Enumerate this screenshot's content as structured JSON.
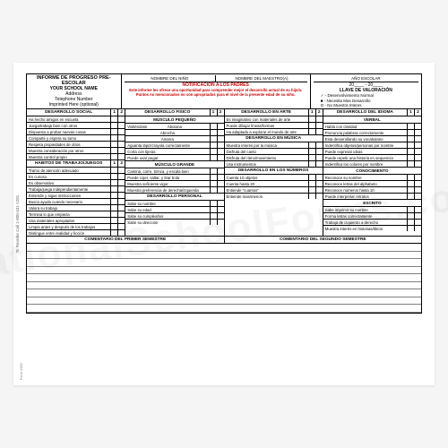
{
  "watermark": "NationalSchoolForms.com",
  "side_text": "To Reorder Call 1-800-431-1281",
  "corner": "Form #582",
  "header": {
    "title": "INFORME DE PROGRESO PRE-ESCOLAR",
    "school": "YOUR SCHOOL NAME",
    "address": "Address",
    "phone": "Telephone Number",
    "imprint": "Imprinted Here (optional)",
    "field_nino": "NOMBRE DEL NIÑO",
    "field_maestro": "NOMBRE DEL MAESTRO(A)",
    "field_ano": "AÑO ESCOLAR",
    "year_text": "20____ - 20____",
    "notif_title": "NOTIFICACIÓN A LOS PADRES",
    "notif_text": "Este informe les ofrece una oportunidad para comprender mejor el desarrollo actual de su hijo/a. Puntos no mencionados no son apropriados para el nivel de la presente edad de su niño.",
    "llave_title": "LLAVE DE VALORACIÓN",
    "llave1": "✓  -  Desenvolvimiento Normal",
    "llave2": "■  -  Necesita Mas Desarrollo",
    "llave3": "O  -  No Muestra Interes"
  },
  "col1": {
    "s1": "DESARROLLO  SOCIAL",
    "i1": "Ha hecho amigos en escuela",
    "i2": "Juega/trabaja bien con otros",
    "i3": "Dispuesto a probar nuevas cosas",
    "i4": "Comparte y espera su turno",
    "i5": "Respeta propiedades de otros",
    "i6": "Muestra consideración por otros",
    "i7": "Muestra control propio",
    "s2": "HABITOS DE TRABAJO/JUEGOS",
    "j1": "Tramo de atención adecuado",
    "j2": "Es curioso",
    "j3": "Es observativo",
    "j4": "Trabaja/juega independientamente",
    "j5": "Entiende y sigue instrucciones",
    "j6": "Busca ayuda cuando necesario",
    "j7": "Valora su trabajo",
    "j8": "Termina lo que empieza",
    "j9": "Usa materiales apropiados",
    "j10": "Limpia antes y después de los trabajos",
    "j11": "Distingue entre realidad y ficción"
  },
  "col2": {
    "s1": "DESARROLLO FISICO",
    "sub1": "MÚSCULO PEQUEÑO",
    "a1l": "Vistiéndose",
    "a1r": "Abotona",
    "a2": "Abrocha",
    "a3": "Amarra",
    "a4": "Aguanta lápiz/crayola correctamente",
    "a5": "Corta con tijeras",
    "a6": "Puede usar pegar",
    "sub2": "MÚSCULO GRANDE",
    "b1": "Camina, corre, brinca, y escala bien",
    "b2": "Puede cojer, saltar, y tirar bola",
    "b3": "Muestra suficiente vigor",
    "b4": "Muestra preferencia de derecha/izquierda",
    "s2": "DESARROLLO PERSONAL",
    "c1": "Sabe su nombre",
    "c2": "Sabe su edad",
    "c3": "Sabe su cumpleaños",
    "c4": "Sabe su dirección"
  },
  "col3": {
    "s1": "DESARROLLO EN ARTE",
    "a1": "Es imaginativo con materiales de arte",
    "a2": "Puede dibujar líneas/formas",
    "a3": "Ha adaptado a explorar el mundo de arte",
    "s2": "DESARROLLO EN MÚSICA",
    "b1": "Muestra interés por la música",
    "b2": "Disfruta del canto",
    "b3": "Disfruta del ritmo/movimiento",
    "b4": "Usa instrumentos",
    "s3": "DESARROLLO EN LOS NÚMEROS",
    "c1": "Cuenta 10 objetos",
    "c2": "Cuenta hasta 20",
    "c3": "Entiende \"cuantos\"",
    "c4": "Entiende mas/menos"
  },
  "col4": {
    "s1": "DESARROLLO DEL IDIOMA",
    "sub1": "VERBAL",
    "a1": "Habla con claridad",
    "a2": "Pronuncia palabras correctamente",
    "a3": "Esta desarrollando su vocabulario",
    "a4": "Indentifica objetos/personas por nombre",
    "a5": "Puede expresar ideas",
    "a6": "Puede repetir una historia en sequencia",
    "sub2": "CONOCIMIENTO",
    "b1": "Reconoce su nombre",
    "b2": "Reconoce letras del alphabeto",
    "b3": "Reconoce números hasta 10",
    "b4": "Puede interpretar retratos",
    "sub3": "ESCRITO",
    "c1": "Sabe imprimir su nombre",
    "c2": "Forma letras correctamente",
    "c3": "Trabaja de izquierdo a derecho",
    "c4": "Muestra interés en historias/libros",
    "c5": "Indentifica los colores por nombre"
  },
  "comments": {
    "left": "COMENTARIO DEL PRIMER SEMESTRE",
    "right": "COMENTARIO DEL SEGUNDO SEMESTRE"
  }
}
